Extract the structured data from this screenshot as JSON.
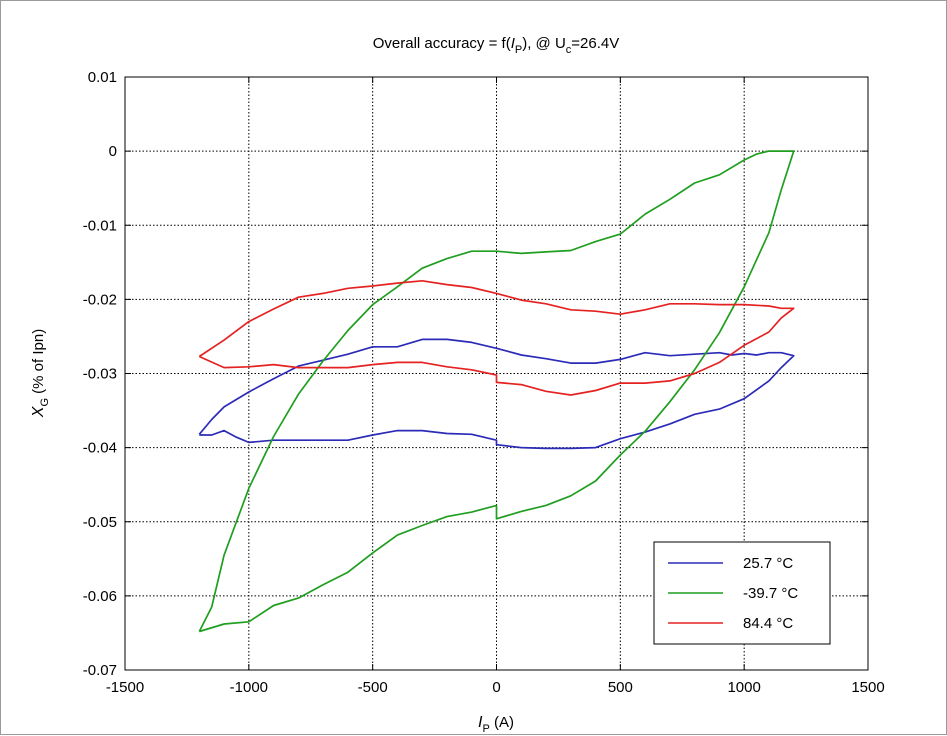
{
  "chart_data": {
    "type": "line",
    "title": "Overall accuracy = f(I_P), @ U_c=26.4V",
    "title_parts": {
      "pre": "Overall accuracy = f(",
      "var": "I",
      "var_sub": "P",
      "mid": "), @ U",
      "u_sub": "c",
      "post": "=26.4V"
    },
    "xlabel": {
      "var": "I",
      "sub": "P",
      "unit": " (A)"
    },
    "ylabel": {
      "var": "X",
      "sub": "G",
      "unit": " (% of Ipn)"
    },
    "xlim": [
      -1500,
      1500
    ],
    "ylim": [
      -0.07,
      0.01
    ],
    "xticks": [
      -1500,
      -1000,
      -500,
      0,
      500,
      1000,
      1500
    ],
    "yticks": [
      0.01,
      0,
      -0.01,
      -0.02,
      -0.03,
      -0.04,
      -0.05,
      -0.06,
      -0.07
    ],
    "grid": true,
    "legend_position": "bottom-right",
    "series": [
      {
        "name": "25.7 °C",
        "color": "#2b2bb8",
        "x": [
          -1200,
          -1150,
          -1100,
          -1000,
          -900,
          -800,
          -700,
          -600,
          -500,
          -400,
          -300,
          -200,
          -100,
          0,
          100,
          200,
          300,
          400,
          500,
          600,
          700,
          800,
          900,
          950,
          1000,
          1050,
          1100,
          1150,
          1200,
          1150,
          1100,
          1000,
          900,
          800,
          700,
          600,
          500,
          400,
          300,
          200,
          100,
          0,
          0,
          -100,
          -200,
          -300,
          -400,
          -500,
          -600,
          -700,
          -800,
          -900,
          -1000,
          -1050,
          -1100,
          -1150,
          -1200
        ],
        "y": [
          -0.0382,
          -0.0362,
          -0.0345,
          -0.0325,
          -0.0307,
          -0.029,
          -0.0282,
          -0.0274,
          -0.0264,
          -0.0264,
          -0.0254,
          -0.0254,
          -0.0258,
          -0.0266,
          -0.0275,
          -0.028,
          -0.0286,
          -0.0286,
          -0.0281,
          -0.0272,
          -0.0276,
          -0.0274,
          -0.0272,
          -0.0275,
          -0.0273,
          -0.0275,
          -0.0272,
          -0.0272,
          -0.0276,
          -0.0292,
          -0.031,
          -0.0334,
          -0.0348,
          -0.0355,
          -0.0368,
          -0.0379,
          -0.0388,
          -0.04,
          -0.0401,
          -0.0401,
          -0.04,
          -0.0396,
          -0.039,
          -0.0382,
          -0.0381,
          -0.0377,
          -0.0377,
          -0.0383,
          -0.039,
          -0.039,
          -0.039,
          -0.039,
          -0.0393,
          -0.0386,
          -0.0377,
          -0.0383,
          -0.0383
        ]
      },
      {
        "name": "-39.7 °C",
        "color": "#1f9e1f",
        "x": [
          -1200,
          -1150,
          -1100,
          -1000,
          -900,
          -800,
          -700,
          -600,
          -500,
          -400,
          -300,
          -200,
          -100,
          0,
          100,
          200,
          300,
          400,
          500,
          600,
          700,
          800,
          900,
          1000,
          1050,
          1100,
          1150,
          1200,
          1150,
          1100,
          1000,
          900,
          800,
          700,
          600,
          500,
          400,
          300,
          200,
          100,
          0,
          0,
          -100,
          -200,
          -300,
          -400,
          -500,
          -600,
          -700,
          -800,
          -900,
          -1000,
          -1100,
          -1200
        ],
        "y": [
          -0.0648,
          -0.0615,
          -0.0545,
          -0.0455,
          -0.0385,
          -0.0328,
          -0.0283,
          -0.0242,
          -0.0207,
          -0.0183,
          -0.0158,
          -0.0145,
          -0.0135,
          -0.0135,
          -0.0138,
          -0.0136,
          -0.0134,
          -0.0122,
          -0.0112,
          -0.0085,
          -0.0065,
          -0.0043,
          -0.0032,
          -0.0012,
          -0.0004,
          0.0,
          0.0,
          0.0,
          -0.0052,
          -0.011,
          -0.0183,
          -0.0245,
          -0.0295,
          -0.0338,
          -0.0378,
          -0.041,
          -0.0445,
          -0.0465,
          -0.0478,
          -0.0486,
          -0.0496,
          -0.0478,
          -0.0487,
          -0.0493,
          -0.0505,
          -0.0518,
          -0.0542,
          -0.0568,
          -0.0585,
          -0.0603,
          -0.0613,
          -0.0635,
          -0.0638,
          -0.0648
        ]
      },
      {
        "name": "84.4 °C",
        "color": "#e52222",
        "x": [
          -1200,
          -1100,
          -1000,
          -900,
          -800,
          -700,
          -600,
          -500,
          -400,
          -300,
          -200,
          -100,
          0,
          100,
          200,
          300,
          400,
          500,
          600,
          700,
          800,
          900,
          1000,
          1100,
          1150,
          1200,
          1150,
          1100,
          1000,
          900,
          800,
          700,
          600,
          500,
          400,
          300,
          200,
          100,
          0,
          0,
          -100,
          -200,
          -300,
          -400,
          -500,
          -600,
          -700,
          -800,
          -900,
          -1000,
          -1100,
          -1200
        ],
        "y": [
          -0.0277,
          -0.0255,
          -0.023,
          -0.0213,
          -0.0197,
          -0.0192,
          -0.0185,
          -0.0182,
          -0.0178,
          -0.0175,
          -0.018,
          -0.0184,
          -0.0192,
          -0.0201,
          -0.0206,
          -0.0214,
          -0.0216,
          -0.022,
          -0.0214,
          -0.0206,
          -0.0206,
          -0.0207,
          -0.0207,
          -0.0209,
          -0.0212,
          -0.0212,
          -0.0225,
          -0.0244,
          -0.0262,
          -0.0285,
          -0.03,
          -0.031,
          -0.0313,
          -0.0313,
          -0.0323,
          -0.0329,
          -0.0324,
          -0.0315,
          -0.0312,
          -0.0302,
          -0.0295,
          -0.0291,
          -0.0285,
          -0.0285,
          -0.0288,
          -0.0292,
          -0.0292,
          -0.0292,
          -0.0288,
          -0.0291,
          -0.0292,
          -0.0277
        ]
      }
    ]
  }
}
